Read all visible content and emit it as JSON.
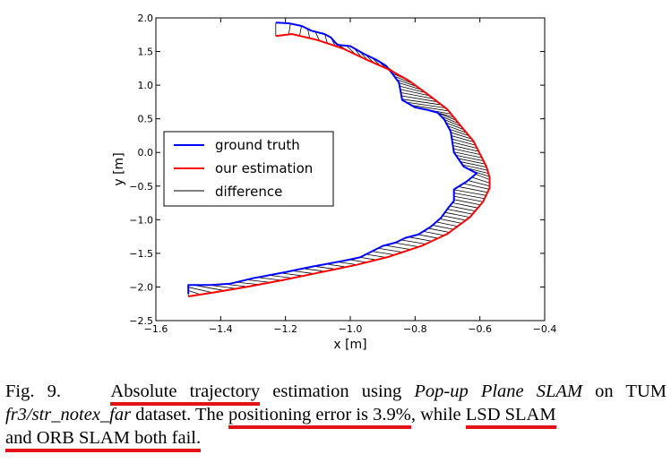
{
  "chart_data": {
    "type": "line",
    "xlabel": "x [m]",
    "ylabel": "y [m]",
    "xlim": [
      -1.6,
      -0.4
    ],
    "ylim": [
      -2.5,
      2.0
    ],
    "xticks": [
      -1.6,
      -1.4,
      -1.2,
      -1.0,
      -0.8,
      -0.6,
      -0.4
    ],
    "yticks": [
      2.0,
      1.5,
      1.0,
      0.5,
      0.0,
      -0.5,
      -1.0,
      -1.5,
      -2.0,
      -2.5
    ],
    "xtick_labels": [
      "−1.6",
      "−1.4",
      "−1.2",
      "−1.0",
      "−0.8",
      "−0.6",
      "−0.4"
    ],
    "ytick_labels": [
      "2.0",
      "1.5",
      "1.0",
      "0.5",
      "0.0",
      "−0.5",
      "−1.0",
      "−1.5",
      "−2.0",
      "−2.5"
    ],
    "grid": false,
    "legend_position": "center-left",
    "series": [
      {
        "name": "ground truth",
        "color": "#0000ff",
        "points": [
          [
            -1.23,
            1.93
          ],
          [
            -1.19,
            1.92
          ],
          [
            -1.15,
            1.88
          ],
          [
            -1.12,
            1.81
          ],
          [
            -1.08,
            1.76
          ],
          [
            -1.06,
            1.71
          ],
          [
            -1.04,
            1.6
          ],
          [
            -1.0,
            1.58
          ],
          [
            -0.96,
            1.47
          ],
          [
            -0.92,
            1.38
          ],
          [
            -0.89,
            1.29
          ],
          [
            -0.87,
            1.17
          ],
          [
            -0.85,
            1.04
          ],
          [
            -0.84,
            0.78
          ],
          [
            -0.8,
            0.67
          ],
          [
            -0.76,
            0.63
          ],
          [
            -0.73,
            0.59
          ],
          [
            -0.71,
            0.49
          ],
          [
            -0.69,
            0.31
          ],
          [
            -0.68,
            0.0
          ],
          [
            -0.65,
            -0.21
          ],
          [
            -0.61,
            -0.31
          ],
          [
            -0.64,
            -0.43
          ],
          [
            -0.68,
            -0.55
          ],
          [
            -0.68,
            -0.72
          ],
          [
            -0.7,
            -0.84
          ],
          [
            -0.72,
            -0.97
          ],
          [
            -0.75,
            -1.1
          ],
          [
            -0.79,
            -1.22
          ],
          [
            -0.83,
            -1.27
          ],
          [
            -0.86,
            -1.34
          ],
          [
            -0.9,
            -1.39
          ],
          [
            -0.97,
            -1.56
          ],
          [
            -1.03,
            -1.62
          ],
          [
            -1.12,
            -1.7
          ],
          [
            -1.2,
            -1.78
          ],
          [
            -1.3,
            -1.87
          ],
          [
            -1.37,
            -1.95
          ],
          [
            -1.43,
            -1.97
          ],
          [
            -1.48,
            -1.97
          ],
          [
            -1.5,
            -1.97
          ],
          [
            -1.5,
            -2.1
          ]
        ]
      },
      {
        "name": "our estimation",
        "color": "#ff0000",
        "points": [
          [
            -1.23,
            1.73
          ],
          [
            -1.18,
            1.76
          ],
          [
            -1.1,
            1.67
          ],
          [
            -1.02,
            1.54
          ],
          [
            -0.95,
            1.38
          ],
          [
            -0.88,
            1.23
          ],
          [
            -0.82,
            1.07
          ],
          [
            -0.76,
            0.86
          ],
          [
            -0.7,
            0.64
          ],
          [
            -0.66,
            0.4
          ],
          [
            -0.62,
            0.17
          ],
          [
            -0.6,
            -0.02
          ],
          [
            -0.58,
            -0.21
          ],
          [
            -0.57,
            -0.37
          ],
          [
            -0.57,
            -0.53
          ],
          [
            -0.59,
            -0.73
          ],
          [
            -0.63,
            -0.96
          ],
          [
            -0.7,
            -1.21
          ],
          [
            -0.78,
            -1.39
          ],
          [
            -0.88,
            -1.55
          ],
          [
            -0.98,
            -1.67
          ],
          [
            -1.1,
            -1.79
          ],
          [
            -1.21,
            -1.9
          ],
          [
            -1.32,
            -2.0
          ],
          [
            -1.42,
            -2.08
          ],
          [
            -1.5,
            -2.14
          ]
        ]
      }
    ],
    "difference_label": "difference",
    "difference_color": "#000000"
  },
  "caption": {
    "fig_label": "Fig. 9.",
    "part1": "Absolute trajectory",
    "part2": " estimation using ",
    "part3_italic": "Pop-up Plane SLAM",
    "part4": " on TUM ",
    "part5_italic": "fr3/str_notex_far",
    "part6": " dataset. The ",
    "part7": "positioning error is 3.9%",
    "part8": ", while ",
    "part9": "LSD SLAM",
    "part10": "and ORB SLAM both fail."
  },
  "colors": {
    "highlight_underline": "#e3121a"
  }
}
